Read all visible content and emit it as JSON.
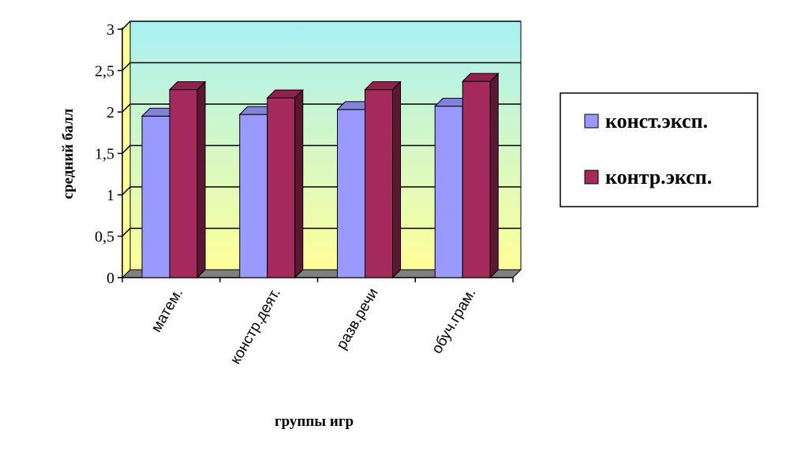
{
  "chart_data": {
    "type": "bar",
    "categories": [
      "матем.",
      "констр.деят.",
      "разв.речи",
      "обуч.грам."
    ],
    "series": [
      {
        "name": "конст.эксп.",
        "values": [
          1.95,
          1.97,
          2.03,
          2.07
        ],
        "color": "#9999ff"
      },
      {
        "name": "контр.эксп.",
        "values": [
          2.27,
          2.17,
          2.27,
          2.37
        ],
        "color": "#a52a5c"
      }
    ],
    "y_ticks": [
      "0",
      "0,5",
      "1",
      "1,5",
      "2",
      "2,5",
      "3"
    ],
    "ylim": [
      0,
      3
    ],
    "xlabel": "группы игр",
    "ylabel": "средний балл",
    "legend_position": "right",
    "grid": true,
    "three_d": true,
    "colors": {
      "wall_top": "#a8f0f5",
      "wall_bottom": "#ffff99",
      "floor": "#808080",
      "grid": "#000000"
    }
  }
}
